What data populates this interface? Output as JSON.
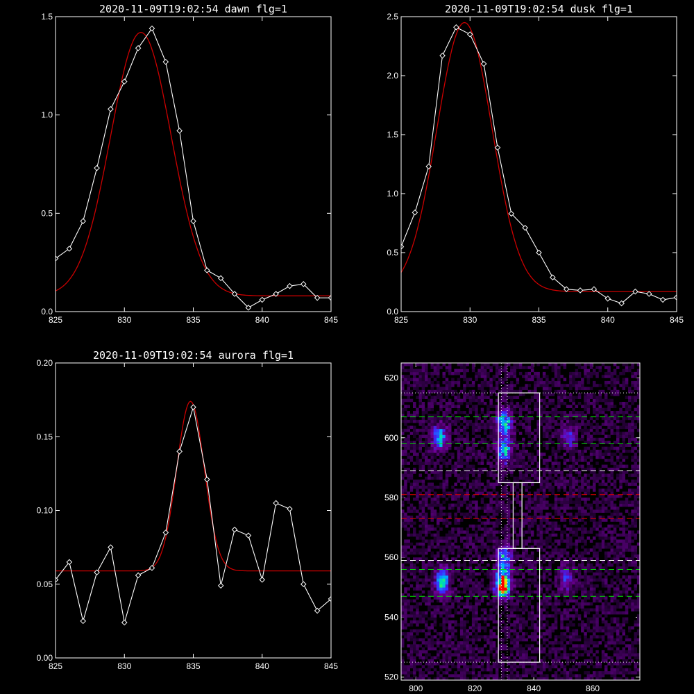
{
  "colors": {
    "background": "#000000",
    "axes": "#ffffff",
    "data_line": "#ffffff",
    "fit_line": "#cc0000",
    "green_lines": "#00e000",
    "red_lines": "#e00000",
    "white_lines": "#ffffff"
  },
  "chart_data": [
    {
      "type": "line",
      "title": "2020-11-09T19:02:54 dawn flg=1",
      "xlim": [
        825,
        845
      ],
      "ylim": [
        0,
        1.5
      ],
      "xticks": [
        "825",
        "830",
        "835",
        "840",
        "845"
      ],
      "yticks": [
        "0.0",
        "0.5",
        "1.0",
        "1.5"
      ],
      "x": [
        825,
        826,
        827,
        828,
        829,
        830,
        831,
        832,
        833,
        834,
        835,
        836,
        837,
        838,
        839,
        840,
        841,
        842,
        843,
        844,
        845
      ],
      "series": [
        {
          "values": [
            0.27,
            0.32,
            0.46,
            0.73,
            1.03,
            1.17,
            1.34,
            1.44,
            1.27,
            0.92,
            0.46,
            0.21,
            0.17,
            0.09,
            0.02,
            0.06,
            0.09,
            0.13,
            0.14,
            0.07,
            0.07
          ],
          "markers": "diamond"
        }
      ],
      "fit": {
        "amplitude": 1.34,
        "center": 831.2,
        "sigma": 2.2,
        "baseline": 0.08
      }
    },
    {
      "type": "line",
      "title": "2020-11-09T19:02:54 dusk flg=1",
      "xlim": [
        825,
        845
      ],
      "ylim": [
        0,
        2.5
      ],
      "xticks": [
        "825",
        "830",
        "835",
        "840",
        "845"
      ],
      "yticks": [
        "0.0",
        "0.5",
        "1.0",
        "1.5",
        "2.0",
        "2.5"
      ],
      "x": [
        825,
        826,
        827,
        828,
        829,
        830,
        831,
        832,
        833,
        834,
        835,
        836,
        837,
        838,
        839,
        840,
        841,
        842,
        843,
        844,
        845
      ],
      "series": [
        {
          "values": [
            0.55,
            0.84,
            1.23,
            2.17,
            2.41,
            2.35,
            2.1,
            1.39,
            0.83,
            0.71,
            0.5,
            0.29,
            0.19,
            0.18,
            0.19,
            0.11,
            0.07,
            0.17,
            0.15,
            0.1,
            0.12
          ],
          "markers": "diamond"
        }
      ],
      "fit": {
        "amplitude": 2.28,
        "center": 829.6,
        "sigma": 2.0,
        "baseline": 0.17
      }
    },
    {
      "type": "line",
      "title": "2020-11-09T19:02:54 aurora flg=1",
      "xlim": [
        825,
        845
      ],
      "ylim": [
        0,
        0.2
      ],
      "xticks": [
        "825",
        "830",
        "835",
        "840",
        "845"
      ],
      "yticks": [
        "0.00",
        "0.05",
        "0.10",
        "0.15",
        "0.20"
      ],
      "x": [
        825,
        826,
        827,
        828,
        829,
        830,
        831,
        832,
        833,
        834,
        835,
        836,
        837,
        838,
        839,
        840,
        841,
        842,
        843,
        844,
        845
      ],
      "series": [
        {
          "values": [
            0.053,
            0.065,
            0.025,
            0.058,
            0.075,
            0.024,
            0.056,
            0.061,
            0.085,
            0.14,
            0.17,
            0.121,
            0.049,
            0.087,
            0.083,
            0.053,
            0.105,
            0.101,
            0.05,
            0.032,
            0.04
          ],
          "markers": "diamond"
        }
      ],
      "fit": {
        "amplitude": 0.115,
        "center": 834.8,
        "sigma": 1.0,
        "baseline": 0.059
      }
    },
    {
      "type": "heatmap",
      "xlim": [
        795,
        876
      ],
      "ylim": [
        519,
        625
      ],
      "xticks": [
        "800",
        "820",
        "840",
        "860"
      ],
      "yticks": [
        "520",
        "540",
        "560",
        "580",
        "600",
        "620"
      ],
      "blobs": [
        {
          "x": 808,
          "y": 600,
          "peak": 0.5
        },
        {
          "x": 830,
          "y": 605,
          "peak": 0.6
        },
        {
          "x": 830,
          "y": 596,
          "peak": 0.55
        },
        {
          "x": 830,
          "y": 560,
          "peak": 0.5
        },
        {
          "x": 829.5,
          "y": 551,
          "peak": 1.0
        },
        {
          "x": 809,
          "y": 552,
          "peak": 0.65
        },
        {
          "x": 851,
          "y": 553,
          "peak": 0.3
        },
        {
          "x": 852,
          "y": 600,
          "peak": 0.3
        }
      ],
      "rois": [
        {
          "x": [
            828,
            842
          ],
          "y": [
            585,
            615
          ]
        },
        {
          "x": [
            833,
            836
          ],
          "y": [
            563,
            585
          ]
        },
        {
          "x": [
            828,
            842
          ],
          "y": [
            525,
            563
          ]
        }
      ],
      "white_dotted_h": [
        615,
        525
      ],
      "white_dotted_v": [
        829,
        831
      ],
      "white_dashed_h": [
        589,
        559
      ],
      "green_dashed_h": [
        607,
        598,
        556,
        547
      ],
      "red_dashed_h": [
        581,
        573
      ]
    }
  ]
}
